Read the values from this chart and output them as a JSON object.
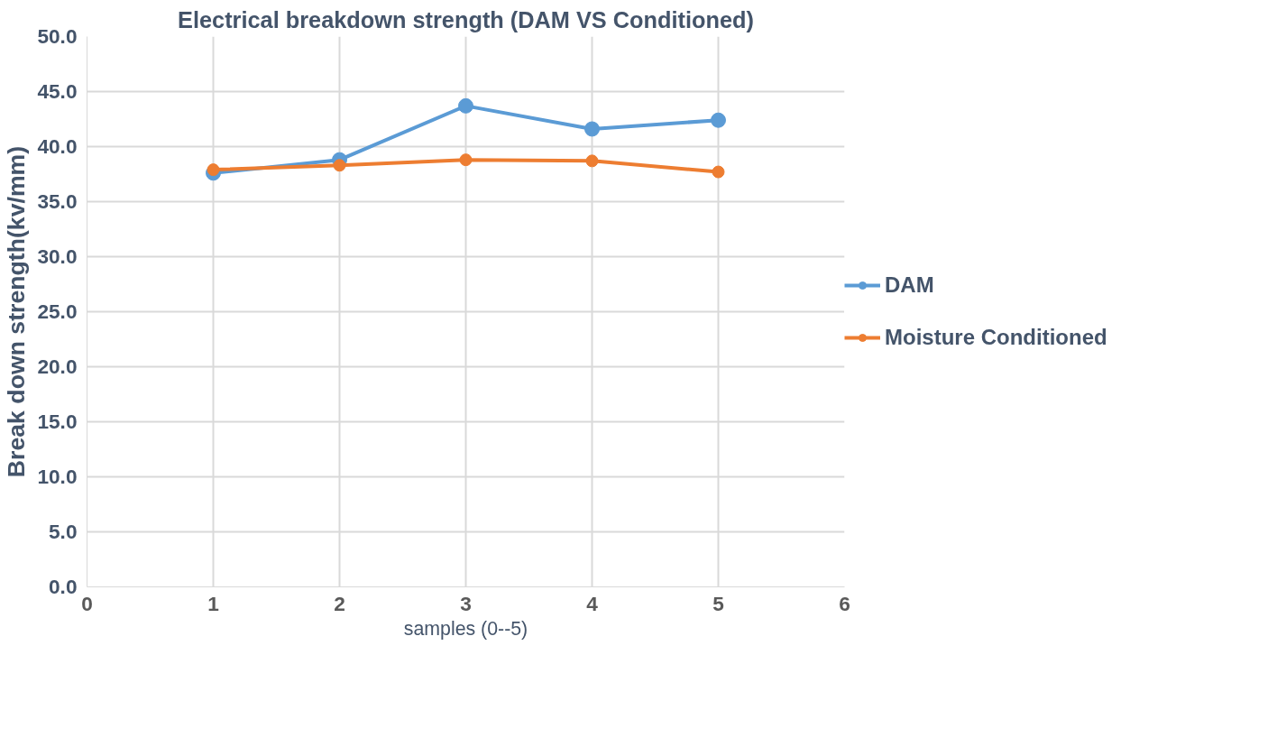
{
  "chart_data": {
    "type": "line",
    "title": "Electrical breakdown strength (DAM VS Conditioned)",
    "xlabel": "samples (0--5)",
    "ylabel": "Break down strength(kv/mm)",
    "x": [
      1,
      2,
      3,
      4,
      5
    ],
    "series": [
      {
        "name": "DAM",
        "color": "#5b9bd5",
        "values": [
          37.6,
          38.8,
          43.7,
          41.6,
          42.4
        ]
      },
      {
        "name": "Moisture Conditioned",
        "color": "#ed7d31",
        "values": [
          37.9,
          38.3,
          38.8,
          38.7,
          37.7
        ]
      }
    ],
    "xlim": [
      0,
      6
    ],
    "xticks": [
      0,
      1,
      2,
      3,
      4,
      5,
      6
    ],
    "ylim": [
      0,
      50
    ],
    "yticks": [
      {
        "value": 0,
        "label": "0.0"
      },
      {
        "value": 5,
        "label": "5.0"
      },
      {
        "value": 10,
        "label": "10.0"
      },
      {
        "value": 15,
        "label": "15.0"
      },
      {
        "value": 20,
        "label": "20.0"
      },
      {
        "value": 25,
        "label": "25.0"
      },
      {
        "value": 30,
        "label": "30.0"
      },
      {
        "value": 35,
        "label": "35.0"
      },
      {
        "value": 40,
        "label": "40.0"
      },
      {
        "value": 45,
        "label": "45.0"
      },
      {
        "value": 50,
        "label": "50.0"
      }
    ],
    "grid": true,
    "legend": "right",
    "marker": "circle",
    "line_style": "solid"
  }
}
